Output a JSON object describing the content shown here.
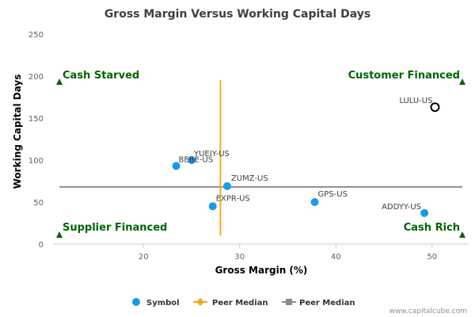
{
  "chart_data": {
    "type": "scatter",
    "title": "Gross Margin Versus Working Capital Days",
    "xlabel": "Gross Margin (%)",
    "ylabel": "Working Capital Days",
    "xlim": [
      10.6,
      53.8
    ],
    "ylim": [
      0,
      250
    ],
    "x_ticks": [
      20,
      30,
      40,
      50
    ],
    "y_ticks": [
      0,
      50,
      100,
      150,
      200,
      250
    ],
    "grid": false,
    "points": [
      {
        "label": "LULU-US",
        "x": 50.3,
        "y": 163,
        "highlight": true
      },
      {
        "label": "YUEIY-US",
        "x": 25.0,
        "y": 100,
        "highlight": false
      },
      {
        "label": "BEBE-US",
        "x": 23.4,
        "y": 93,
        "highlight": false
      },
      {
        "label": "ZUMZ-US",
        "x": 28.7,
        "y": 69,
        "highlight": false
      },
      {
        "label": "EXPR-US",
        "x": 27.2,
        "y": 45,
        "highlight": false
      },
      {
        "label": "GPS-US",
        "x": 37.8,
        "y": 50,
        "highlight": false
      },
      {
        "label": "ADDYY-US",
        "x": 49.2,
        "y": 37,
        "highlight": false
      }
    ],
    "peer_median_x": 28.0,
    "peer_median_y": 68,
    "quadrants": {
      "top_left": "Cash Starved",
      "top_right": "Customer Financed",
      "bottom_left": "Supplier Financed",
      "bottom_right": "Cash Rich"
    },
    "legend": {
      "position": "bottom",
      "items": [
        {
          "label": "Symbol",
          "marker": "circle",
          "color": "#1a9be6"
        },
        {
          "label": "Peer Median",
          "marker": "diamond",
          "color": "#f5a623"
        },
        {
          "label": "Peer Median",
          "marker": "square",
          "color": "#8c8c96"
        }
      ]
    },
    "colors": {
      "point": "#1a9be6",
      "median_vertical": "#f5a623",
      "median_horizontal": "#8c8c96",
      "quadrant": "#006400"
    }
  },
  "credit": "www.capitalcube.com"
}
